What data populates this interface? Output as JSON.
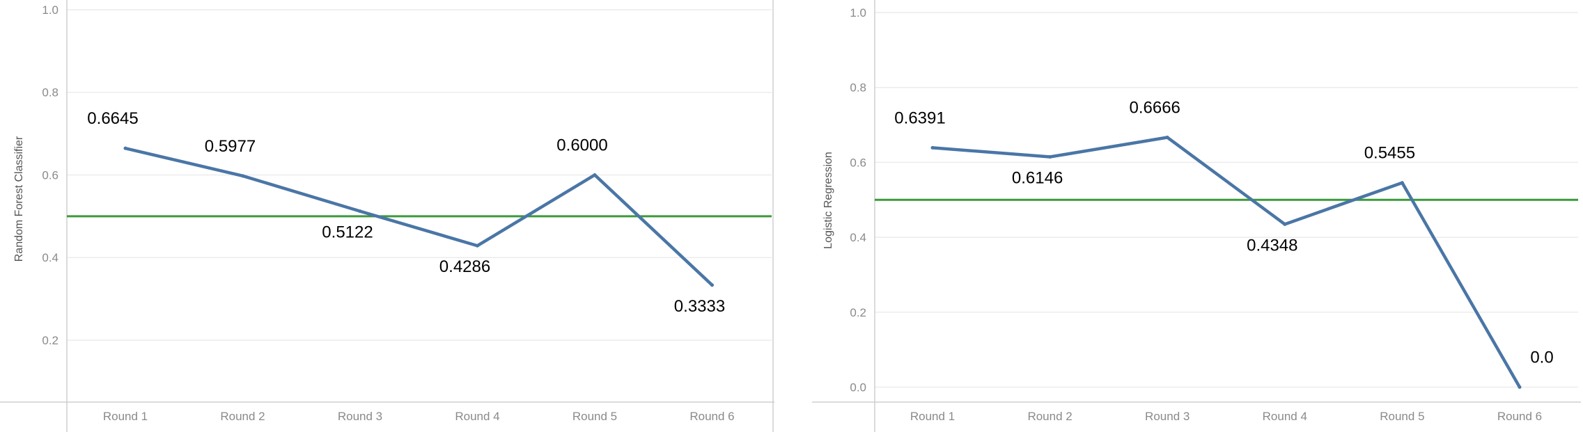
{
  "chart_data": [
    {
      "type": "line",
      "ylabel": "Random Forest Classifier",
      "categories": [
        "Round 1",
        "Round 2",
        "Round 3",
        "Round 4",
        "Round 5",
        "Round 6"
      ],
      "values": [
        0.6645,
        0.5977,
        0.5122,
        0.4286,
        0.6,
        0.3333
      ],
      "data_labels": [
        "0.6645",
        "0.5977",
        "0.5122",
        "0.4286",
        "0.6000",
        "0.3333"
      ],
      "yticks": [
        "1.0",
        "0.8",
        "0.6",
        "0.4",
        "0.2"
      ],
      "ylim": [
        0.05,
        1.0
      ],
      "reference_line": 0.5,
      "series_color": "#4a76a6",
      "reference_color": "#3a9a3a",
      "grid": true
    },
    {
      "type": "line",
      "ylabel": "Logistic Regression",
      "categories": [
        "Round 1",
        "Round 2",
        "Round 3",
        "Round 4",
        "Round 5",
        "Round 6"
      ],
      "values": [
        0.6391,
        0.6146,
        0.6666,
        0.4348,
        0.5455,
        0.0
      ],
      "data_labels": [
        "0.6391",
        "0.6146",
        "0.6666",
        "0.4348",
        "0.5455",
        "0.0"
      ],
      "yticks": [
        "1.0",
        "0.8",
        "0.6",
        "0.4",
        "0.2",
        "0.0"
      ],
      "ylim": [
        -0.04,
        1.0
      ],
      "reference_line": 0.5,
      "series_color": "#4a76a6",
      "reference_color": "#3a9a3a",
      "grid": true
    }
  ]
}
